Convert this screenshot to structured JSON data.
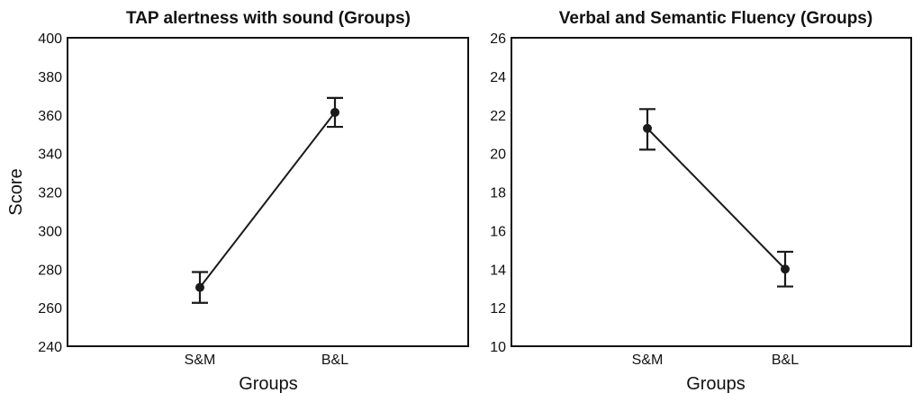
{
  "chart_data": [
    {
      "type": "line",
      "title": "TAP alertness with sound (Groups)",
      "xlabel": "Groups",
      "ylabel": "Score",
      "categories": [
        "S&M",
        "B&L"
      ],
      "ylim": [
        240,
        400
      ],
      "yticks": [
        "240",
        "260",
        "280",
        "300",
        "320",
        "340",
        "360",
        "380",
        "400"
      ],
      "grid": true,
      "series": [
        {
          "values": [
            270.5,
            361.3
          ],
          "error_low": [
            262.5,
            353.8
          ],
          "error_high": [
            278.5,
            368.8
          ]
        }
      ]
    },
    {
      "type": "line",
      "title": "Verbal and Semantic Fluency (Groups)",
      "xlabel": "Groups",
      "ylabel": "",
      "categories": [
        "S&M",
        "B&L"
      ],
      "ylim": [
        10,
        26
      ],
      "yticks": [
        "10",
        "12",
        "14",
        "16",
        "18",
        "20",
        "22",
        "24",
        "26"
      ],
      "grid": true,
      "series": [
        {
          "values": [
            21.3,
            14.0
          ],
          "error_low": [
            20.2,
            13.1
          ],
          "error_high": [
            22.3,
            14.9
          ]
        }
      ]
    }
  ]
}
